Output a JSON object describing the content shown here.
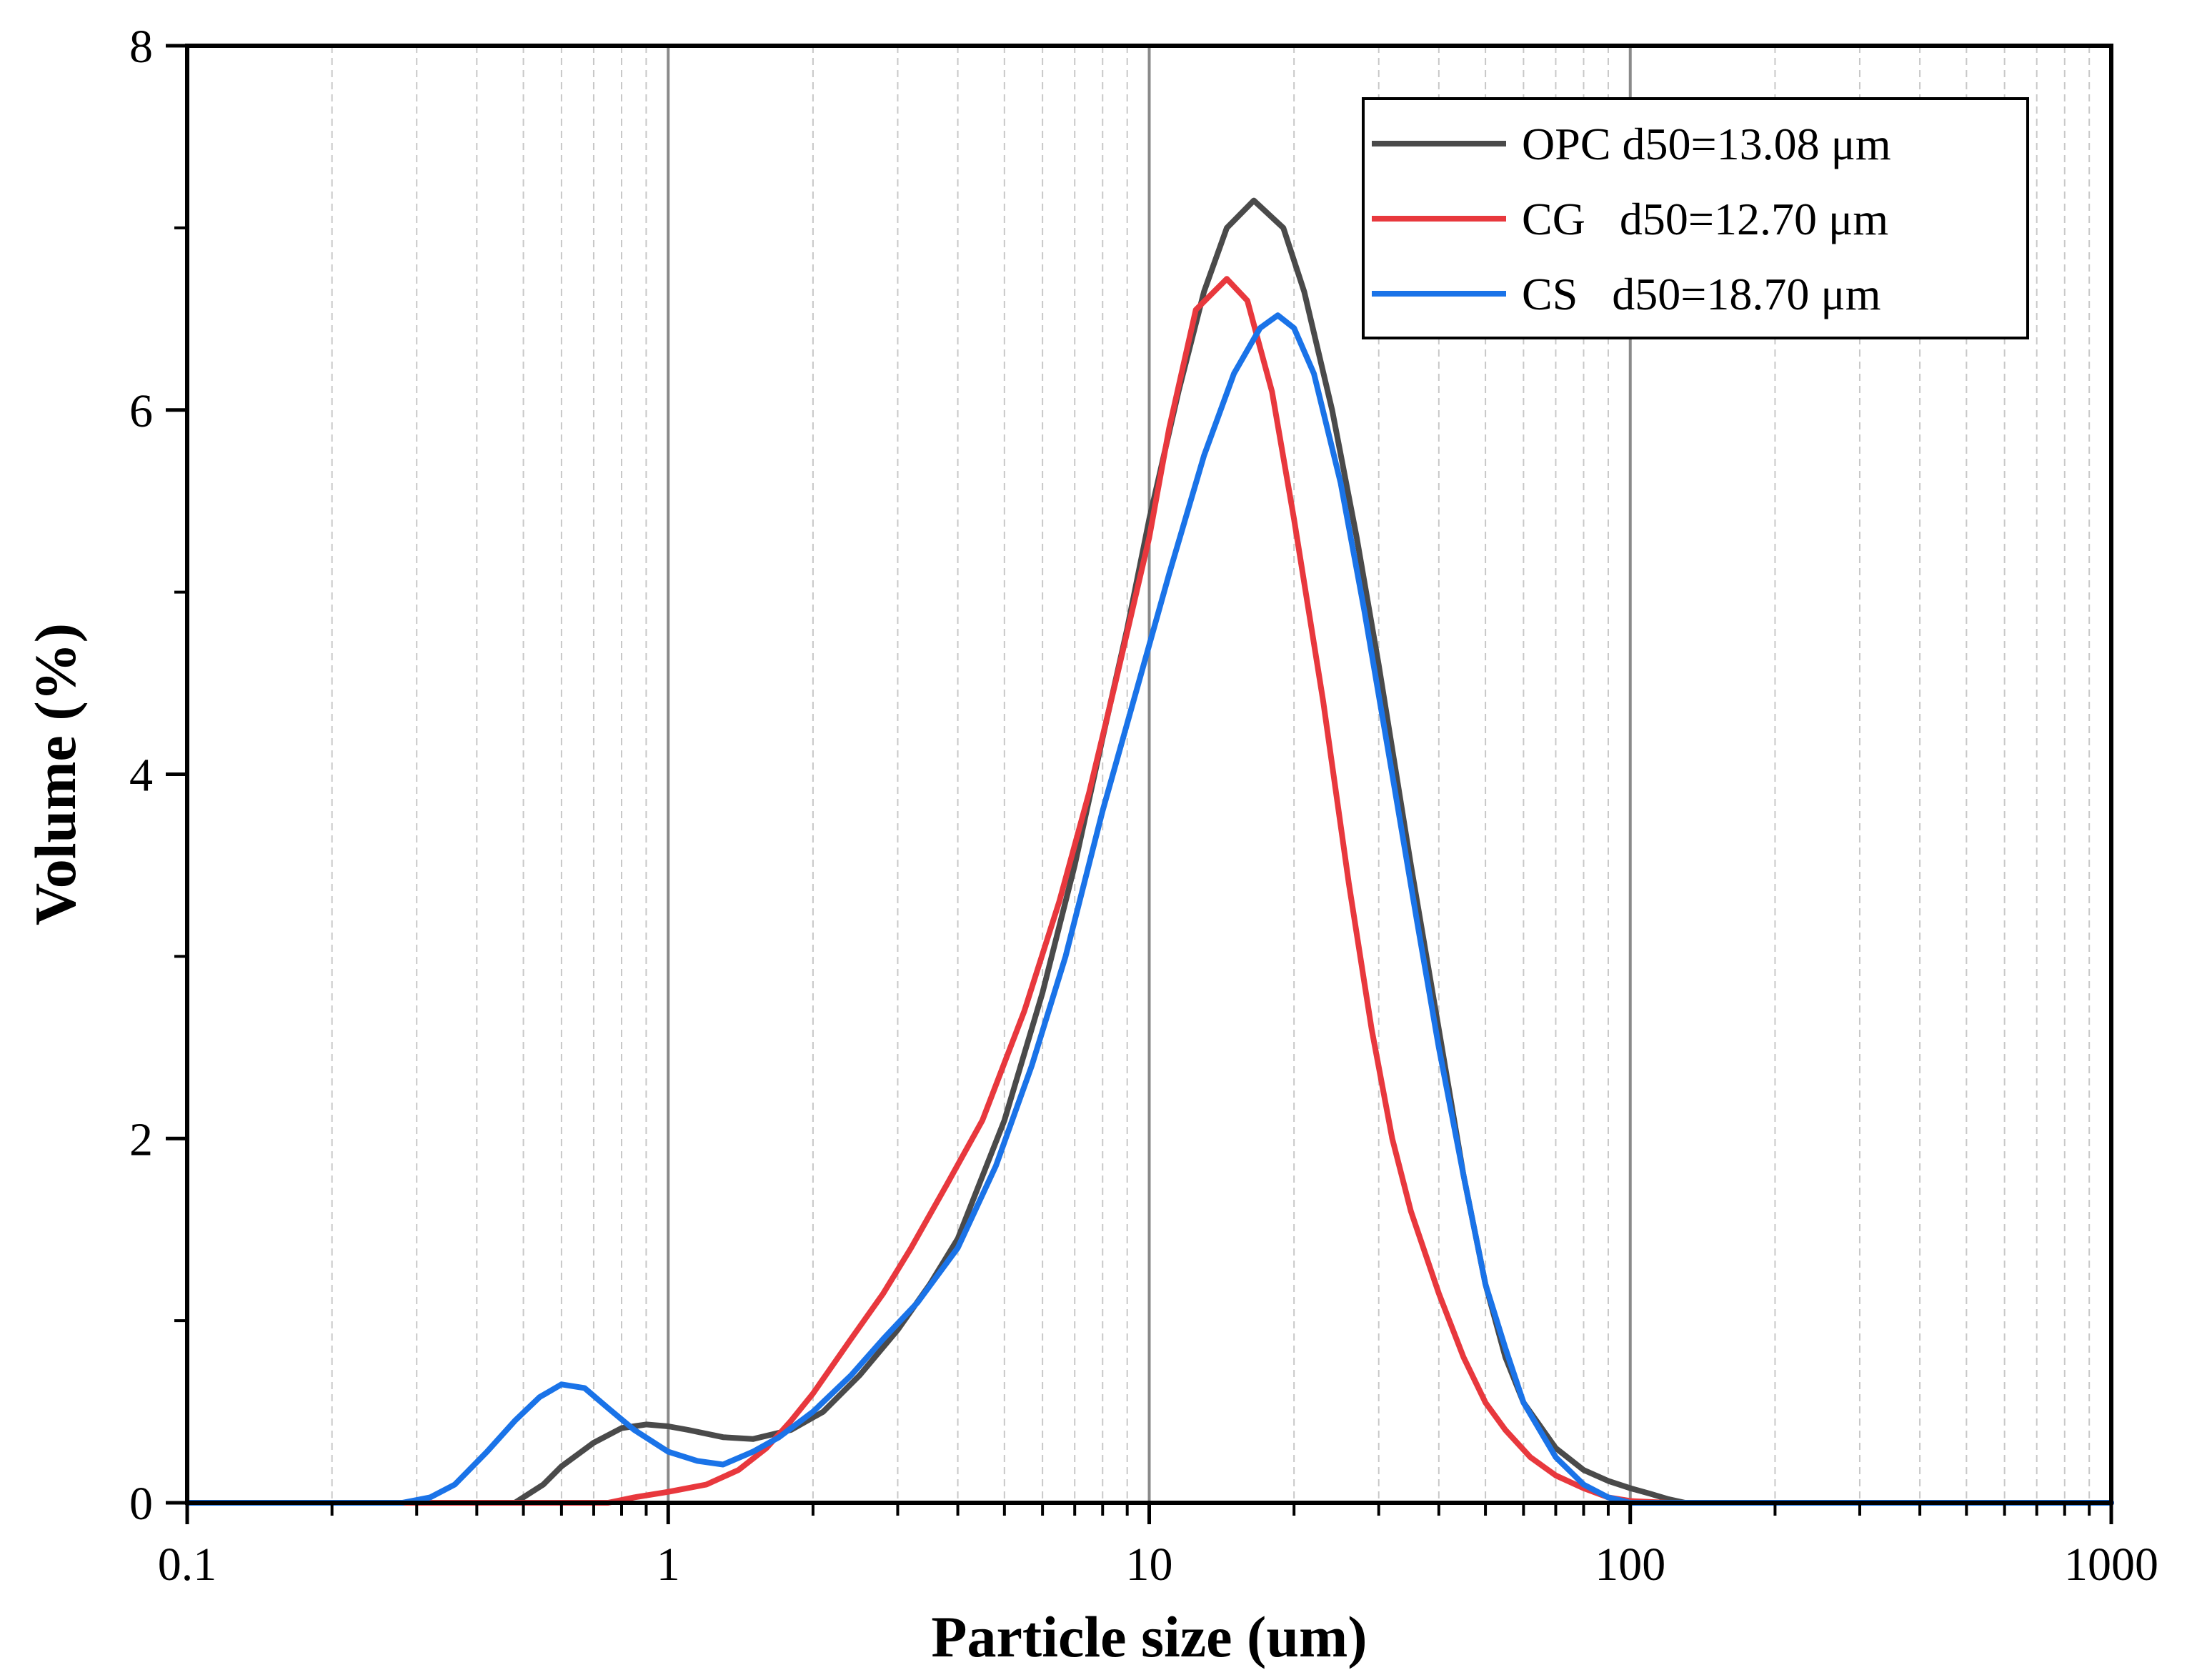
{
  "chart_data": {
    "type": "line",
    "title": "",
    "xlabel": "Particle size (um)",
    "ylabel": "Volume (%)",
    "xscale": "log",
    "xlim": [
      0.1,
      1000
    ],
    "ylim": [
      0,
      8
    ],
    "x_ticks": [
      0.1,
      1,
      10,
      100,
      1000
    ],
    "x_tick_labels": [
      "0.1",
      "1",
      "10",
      "100",
      "1000"
    ],
    "y_ticks": [
      0,
      2,
      4,
      6,
      8
    ],
    "y_tick_labels": [
      "0",
      "2",
      "4",
      "6",
      "8"
    ],
    "grid": "vertical, major solid, minor dashed",
    "legend_position": "top-right",
    "series": [
      {
        "name": "OPC",
        "legend_label": "OPC d50=13.08 μm",
        "color": "#4a4a4a",
        "x": [
          0.1,
          0.2,
          0.4,
          0.48,
          0.55,
          0.6,
          0.7,
          0.8,
          0.9,
          1.0,
          1.1,
          1.3,
          1.5,
          1.8,
          2.1,
          2.5,
          3.0,
          3.5,
          4.0,
          5.0,
          6.0,
          7.0,
          8.0,
          9.0,
          10.0,
          11.5,
          13.0,
          14.5,
          16.5,
          19.0,
          21.0,
          24.0,
          27.0,
          30.0,
          35.0,
          40.0,
          45.0,
          50.0,
          55.0,
          60.0,
          70.0,
          80.0,
          90.0,
          100.0,
          110.0,
          120.0,
          130.0,
          200.0,
          1000.0
        ],
        "values": [
          0,
          0,
          0,
          0,
          0.1,
          0.2,
          0.33,
          0.41,
          0.43,
          0.42,
          0.4,
          0.36,
          0.35,
          0.4,
          0.5,
          0.7,
          0.95,
          1.2,
          1.45,
          2.1,
          2.8,
          3.5,
          4.2,
          4.8,
          5.4,
          6.1,
          6.65,
          7.0,
          7.15,
          7.0,
          6.65,
          6.0,
          5.3,
          4.6,
          3.5,
          2.6,
          1.8,
          1.2,
          0.8,
          0.55,
          0.3,
          0.18,
          0.12,
          0.08,
          0.05,
          0.02,
          0,
          0,
          0
        ]
      },
      {
        "name": "CG",
        "legend_label": "CG   d50=12.70 μm",
        "color": "#e8383d",
        "x": [
          0.1,
          0.5,
          0.75,
          0.85,
          1.0,
          1.2,
          1.4,
          1.6,
          1.8,
          2.0,
          2.4,
          2.8,
          3.2,
          3.8,
          4.5,
          5.5,
          6.5,
          7.5,
          8.5,
          10.0,
          11.0,
          12.5,
          14.5,
          16.0,
          18.0,
          20.0,
          23.0,
          26.0,
          29.0,
          32.0,
          35.0,
          40.0,
          45.0,
          50.0,
          55.0,
          62.0,
          70.0,
          80.0,
          90.0,
          100.0,
          120.0,
          200.0,
          1000.0
        ],
        "values": [
          0,
          0,
          0,
          0.03,
          0.06,
          0.1,
          0.18,
          0.3,
          0.45,
          0.6,
          0.9,
          1.15,
          1.4,
          1.75,
          2.1,
          2.7,
          3.3,
          3.9,
          4.5,
          5.3,
          5.9,
          6.55,
          6.72,
          6.6,
          6.1,
          5.4,
          4.4,
          3.4,
          2.6,
          2.0,
          1.6,
          1.15,
          0.8,
          0.55,
          0.4,
          0.25,
          0.15,
          0.08,
          0.03,
          0.01,
          0,
          0,
          0
        ]
      },
      {
        "name": "CS",
        "legend_label": "CS   d50=18.70 μm",
        "color": "#1a73e8",
        "x": [
          0.1,
          0.28,
          0.32,
          0.36,
          0.42,
          0.48,
          0.54,
          0.6,
          0.67,
          0.75,
          0.85,
          1.0,
          1.15,
          1.3,
          1.5,
          1.7,
          2.0,
          2.4,
          2.8,
          3.3,
          4.0,
          4.8,
          5.7,
          6.7,
          8.0,
          9.5,
          11.0,
          13.0,
          15.0,
          17.0,
          18.5,
          20.0,
          22.0,
          25.0,
          28.0,
          32.0,
          36.0,
          40.0,
          45.0,
          50.0,
          55.0,
          60.0,
          70.0,
          80.0,
          90.0,
          100.0,
          110.0,
          1000.0
        ],
        "values": [
          0,
          0,
          0.03,
          0.1,
          0.28,
          0.45,
          0.58,
          0.65,
          0.63,
          0.52,
          0.4,
          0.28,
          0.23,
          0.21,
          0.28,
          0.36,
          0.5,
          0.7,
          0.9,
          1.1,
          1.4,
          1.85,
          2.4,
          3.0,
          3.8,
          4.5,
          5.1,
          5.75,
          6.2,
          6.45,
          6.52,
          6.45,
          6.2,
          5.6,
          4.9,
          4.0,
          3.2,
          2.5,
          1.8,
          1.2,
          0.85,
          0.55,
          0.25,
          0.1,
          0.03,
          0,
          0,
          0
        ]
      }
    ]
  }
}
